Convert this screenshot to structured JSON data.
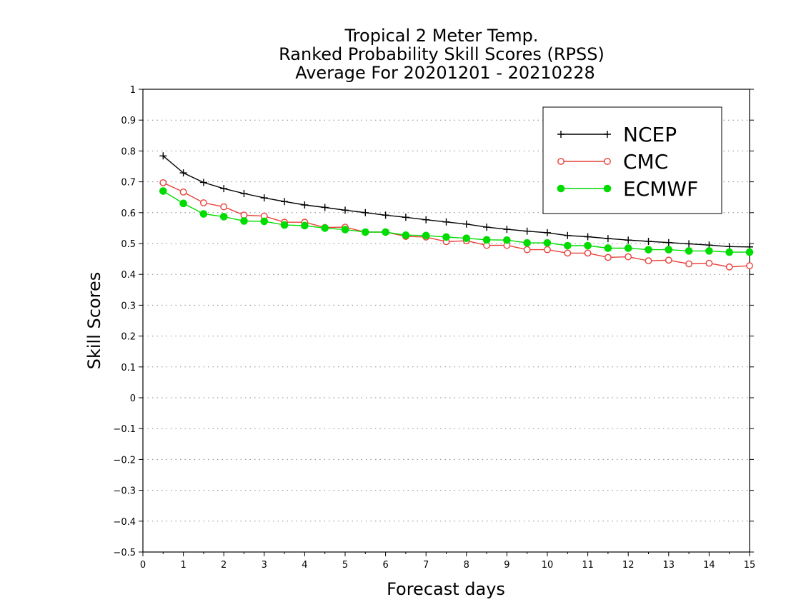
{
  "chart_data": {
    "type": "line",
    "title_lines": [
      "Tropical 2 Meter Temp.",
      "Ranked Probability Skill Scores (RPSS)",
      "Average For 20201201 - 20210228"
    ],
    "xlabel": "Forecast days",
    "ylabel": "Skill Scores",
    "xlim": [
      0,
      15
    ],
    "ylim": [
      -0.5,
      1
    ],
    "x_ticks": [
      "0",
      "1",
      "2",
      "3",
      "4",
      "5",
      "6",
      "7",
      "8",
      "9",
      "10",
      "11",
      "12",
      "13",
      "14",
      "15"
    ],
    "y_ticks": [
      "−0.5",
      "−0.4",
      "−0.3",
      "−0.2",
      "−0.1",
      "0",
      "0.1",
      "0.2",
      "0.3",
      "0.4",
      "0.5",
      "0.6",
      "0.7",
      "0.8",
      "0.9",
      "1"
    ],
    "grid": "horizontal dotted",
    "legend_position": "top-right",
    "x": [
      0.5,
      1,
      1.5,
      2,
      2.5,
      3,
      3.5,
      4,
      4.5,
      5,
      5.5,
      6,
      6.5,
      7,
      7.5,
      8,
      8.5,
      9,
      9.5,
      10,
      10.5,
      11,
      11.5,
      12,
      12.5,
      13,
      13.5,
      14,
      14.5,
      15
    ],
    "series": [
      {
        "name": "NCEP",
        "color": "#000000",
        "marker": "plus",
        "values": [
          0.784,
          0.729,
          0.698,
          0.678,
          0.662,
          0.648,
          0.636,
          0.625,
          0.617,
          0.608,
          0.6,
          0.592,
          0.585,
          0.577,
          0.57,
          0.563,
          0.553,
          0.546,
          0.54,
          0.535,
          0.526,
          0.522,
          0.516,
          0.511,
          0.507,
          0.503,
          0.499,
          0.495,
          0.49,
          0.489
        ]
      },
      {
        "name": "CMC",
        "color": "#e8403a",
        "marker": "open-circle",
        "values": [
          0.697,
          0.667,
          0.632,
          0.619,
          0.592,
          0.589,
          0.569,
          0.569,
          0.552,
          0.553,
          0.537,
          0.537,
          0.523,
          0.521,
          0.506,
          0.509,
          0.494,
          0.494,
          0.48,
          0.48,
          0.469,
          0.469,
          0.455,
          0.457,
          0.444,
          0.446,
          0.434,
          0.436,
          0.424,
          0.428
        ]
      },
      {
        "name": "ECMWF",
        "color": "#00dc00",
        "marker": "filled-circle",
        "values": [
          0.67,
          0.63,
          0.596,
          0.587,
          0.573,
          0.572,
          0.56,
          0.558,
          0.55,
          0.545,
          0.537,
          0.537,
          0.527,
          0.526,
          0.521,
          0.517,
          0.512,
          0.511,
          0.502,
          0.502,
          0.493,
          0.493,
          0.485,
          0.485,
          0.48,
          0.48,
          0.476,
          0.476,
          0.472,
          0.472
        ]
      }
    ]
  }
}
